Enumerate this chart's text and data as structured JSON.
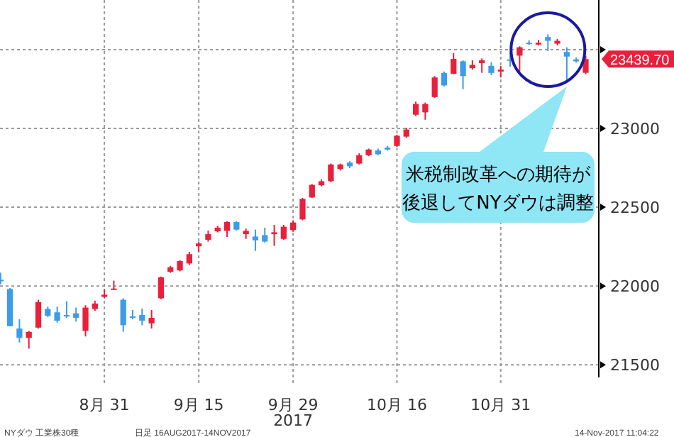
{
  "chart_data": {
    "type": "candlestick",
    "categories": [
      null,
      null,
      null,
      null,
      null,
      null,
      null,
      null,
      null,
      null,
      null,
      "8月 31",
      null,
      null,
      null,
      null,
      null,
      null,
      null,
      null,
      null,
      "9月 15",
      null,
      null,
      null,
      null,
      null,
      null,
      null,
      null,
      null,
      "9月 29",
      null,
      null,
      null,
      null,
      null,
      null,
      null,
      null,
      null,
      null,
      "10月 16",
      null,
      null,
      null,
      null,
      null,
      null,
      null,
      null,
      null,
      null,
      "10月 31",
      null,
      null,
      null,
      null,
      null,
      null,
      null,
      null,
      null
    ],
    "ohlc": [
      [
        22040,
        22084,
        22010,
        22030
      ],
      [
        21981,
        21987,
        21745,
        21745
      ],
      [
        21730,
        21789,
        21642,
        21671
      ],
      [
        21671,
        21715,
        21603,
        21709
      ],
      [
        21736,
        21913,
        21730,
        21898
      ],
      [
        21854,
        21869,
        21804,
        21810
      ],
      [
        21833,
        21869,
        21768,
        21780
      ],
      [
        21816,
        21904,
        21798,
        21810
      ],
      [
        21827,
        21863,
        21774,
        21798
      ],
      [
        21715,
        21878,
        21680,
        21863
      ],
      [
        21854,
        21907,
        21842,
        21889
      ],
      [
        21931,
        21981,
        21922,
        21945
      ],
      [
        21975,
        22034,
        21975,
        21984
      ],
      [
        21913,
        21922,
        21710,
        21751
      ],
      [
        21807,
        21848,
        21789,
        21801
      ],
      [
        21816,
        21857,
        21751,
        21780
      ],
      [
        21763,
        21848,
        21730,
        21798
      ],
      [
        21922,
        22060,
        21916,
        22055
      ],
      [
        22090,
        22128,
        22084,
        22119
      ],
      [
        22099,
        22164,
        22093,
        22158
      ],
      [
        22143,
        22217,
        22134,
        22202
      ],
      [
        22252,
        22282,
        22217,
        22270
      ],
      [
        22293,
        22352,
        22282,
        22329
      ],
      [
        22347,
        22382,
        22341,
        22370
      ],
      [
        22350,
        22411,
        22311,
        22406
      ],
      [
        22406,
        22411,
        22352,
        22358
      ],
      [
        22329,
        22364,
        22299,
        22350
      ],
      [
        22314,
        22358,
        22223,
        22290
      ],
      [
        22323,
        22370,
        22276,
        22282
      ],
      [
        22329,
        22388,
        22255,
        22341
      ],
      [
        22299,
        22388,
        22293,
        22376
      ],
      [
        22355,
        22417,
        22344,
        22403
      ],
      [
        22423,
        22559,
        22417,
        22553
      ],
      [
        22562,
        22647,
        22559,
        22642
      ],
      [
        22639,
        22677,
        22633,
        22665
      ],
      [
        22665,
        22777,
        22659,
        22771
      ],
      [
        22742,
        22777,
        22733,
        22771
      ],
      [
        22783,
        22792,
        22748,
        22760
      ],
      [
        22777,
        22842,
        22771,
        22830
      ],
      [
        22830,
        22872,
        22824,
        22866
      ],
      [
        22860,
        22872,
        22830,
        22836
      ],
      [
        22878,
        22889,
        22860,
        22866
      ],
      [
        22889,
        22960,
        22883,
        22954
      ],
      [
        22948,
        23004,
        22940,
        22993
      ],
      [
        23087,
        23170,
        23078,
        23155
      ],
      [
        23102,
        23164,
        23055,
        23155
      ],
      [
        23199,
        23332,
        23193,
        23323
      ],
      [
        23352,
        23361,
        23267,
        23273
      ],
      [
        23347,
        23479,
        23344,
        23441
      ],
      [
        23426,
        23432,
        23249,
        23332
      ],
      [
        23382,
        23432,
        23373,
        23403
      ],
      [
        23414,
        23444,
        23353,
        23432
      ],
      [
        23397,
        23420,
        23338,
        23352
      ],
      [
        23361,
        23397,
        23323,
        23373
      ],
      [
        23438,
        23485,
        23391,
        23432
      ],
      [
        23462,
        23521,
        23353,
        23515
      ],
      [
        23544,
        23559,
        23530,
        23538
      ],
      [
        23532,
        23562,
        23527,
        23544
      ],
      [
        23580,
        23597,
        23491,
        23556
      ],
      [
        23538,
        23568,
        23527,
        23556
      ],
      [
        23485,
        23515,
        23308,
        23456
      ],
      [
        23438,
        23450,
        23417,
        23426
      ],
      [
        23353,
        23462,
        23344,
        23439.7
      ]
    ],
    "colors": [
      "#3d9be9",
      "#3d9be9",
      "#3d9be9",
      "#e8203c",
      "#e8203c",
      "#3d9be9",
      "#3d9be9",
      "#3d9be9",
      "#3d9be9",
      "#e8203c",
      "#e8203c",
      "#e8203c",
      "#e8203c",
      "#3d9be9",
      "#3d9be9",
      "#3d9be9",
      "#e8203c",
      "#e8203c",
      "#e8203c",
      "#e8203c",
      "#e8203c",
      "#e8203c",
      "#e8203c",
      "#e8203c",
      "#e8203c",
      "#3d9be9",
      "#e8203c",
      "#3d9be9",
      "#3d9be9",
      "#e8203c",
      "#e8203c",
      "#e8203c",
      "#e8203c",
      "#e8203c",
      "#e8203c",
      "#e8203c",
      "#e8203c",
      "#3d9be9",
      "#e8203c",
      "#e8203c",
      "#3d9be9",
      "#3d9be9",
      "#e8203c",
      "#e8203c",
      "#e8203c",
      "#e8203c",
      "#e8203c",
      "#3d9be9",
      "#e8203c",
      "#3d9be9",
      "#e8203c",
      "#e8203c",
      "#3d9be9",
      "#e8203c",
      "#3d9be9",
      "#e8203c",
      "#3d9be9",
      "#e8203c",
      "#3d9be9",
      "#e8203c",
      "#3d9be9",
      "#3d9be9",
      "#e8203c"
    ],
    "ylim": [
      21420,
      23815
    ],
    "yticks": [
      21500,
      22000,
      22500,
      23000,
      {
        "value": 23500,
        "label": null
      }
    ],
    "grid": true,
    "annotations": [
      "米税制改革への期待が",
      "後退してNYダウは調整",
      "23439.70",
      "2017",
      "NYダウ 工業株30種",
      "日足 16AUG2017-14NOV2017",
      "14-Nov-2017 11:04:22"
    ]
  }
}
